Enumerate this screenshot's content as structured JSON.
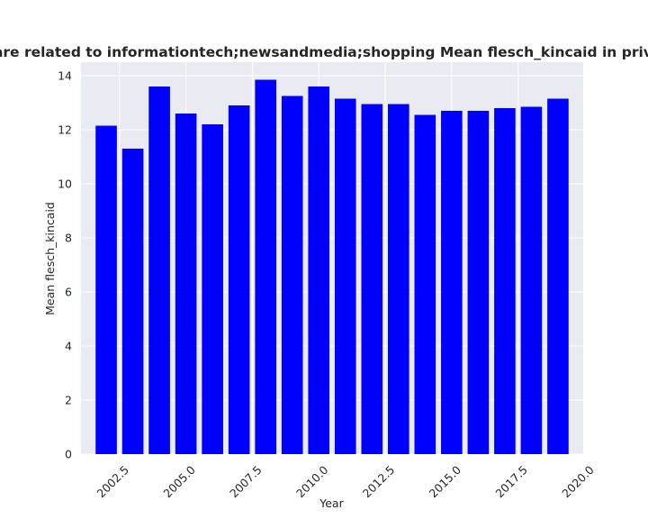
{
  "chart_data": {
    "type": "bar",
    "title": "Categories are related to informationtech;newsandmedia;shopping Mean flesch_kincaid in privacy policies",
    "xlabel": "Year",
    "ylabel": "Mean flesch_kincaid",
    "x": [
      2002,
      2003,
      2004,
      2005,
      2006,
      2007,
      2008,
      2009,
      2010,
      2011,
      2012,
      2013,
      2014,
      2015,
      2016,
      2017,
      2018,
      2019
    ],
    "values": [
      12.15,
      11.3,
      13.6,
      12.6,
      12.2,
      12.9,
      13.85,
      13.25,
      13.6,
      13.15,
      12.95,
      12.95,
      12.55,
      12.7,
      12.7,
      12.8,
      12.85,
      13.15
    ],
    "xlim": [
      2001.05,
      2019.95
    ],
    "ylim": [
      0,
      14.5
    ],
    "xticks": [
      2002.5,
      2005.0,
      2007.5,
      2010.0,
      2012.5,
      2015.0,
      2017.5,
      2020.0
    ],
    "xtick_labels": [
      "2002.5",
      "2005.0",
      "2007.5",
      "2010.0",
      "2012.5",
      "2015.0",
      "2017.5",
      "2020.0"
    ],
    "yticks": [
      0,
      2,
      4,
      6,
      8,
      10,
      12,
      14
    ],
    "ytick_labels": [
      "0",
      "2",
      "4",
      "6",
      "8",
      "10",
      "12",
      "14"
    ],
    "bar_color": "#0000ff",
    "background_color": "#eaeaf2",
    "grid_color": "#ffffff",
    "grid": true
  }
}
